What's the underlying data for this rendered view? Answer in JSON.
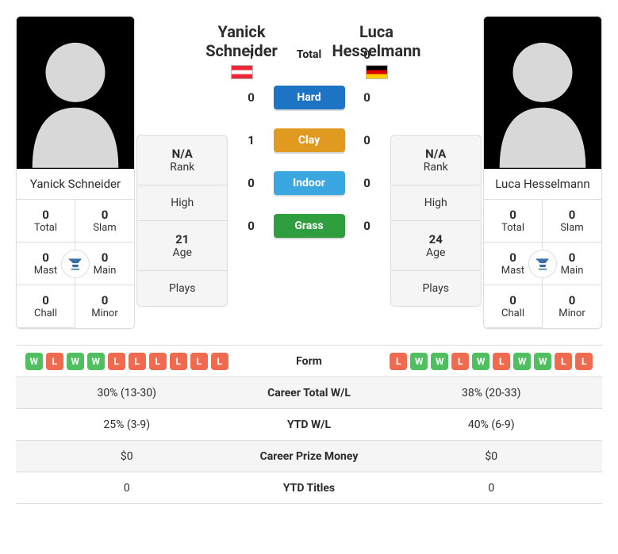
{
  "playerA": {
    "name": "Yanick Schneider",
    "flag": "flag-at",
    "rank": "N/A",
    "high": "",
    "age": "21",
    "plays": "",
    "titles": {
      "total": "0",
      "slam": "0",
      "mast": "0",
      "main": "0",
      "chall": "0",
      "minor": "0"
    },
    "form": [
      "W",
      "L",
      "W",
      "W",
      "L",
      "L",
      "L",
      "L",
      "L",
      "L"
    ]
  },
  "playerB": {
    "name": "Luca Hesselmann",
    "flag": "flag-de",
    "rank": "N/A",
    "high": "",
    "age": "24",
    "plays": "",
    "titles": {
      "total": "0",
      "slam": "0",
      "mast": "0",
      "main": "0",
      "chall": "0",
      "minor": "0"
    },
    "form": [
      "L",
      "W",
      "W",
      "L",
      "W",
      "L",
      "W",
      "W",
      "L",
      "L"
    ]
  },
  "h2h": {
    "total": {
      "label": "Total",
      "a": "1",
      "b": "0"
    },
    "hard": {
      "label": "Hard",
      "a": "0",
      "b": "0"
    },
    "clay": {
      "label": "Clay",
      "a": "1",
      "b": "0"
    },
    "indoor": {
      "label": "Indoor",
      "a": "0",
      "b": "0"
    },
    "grass": {
      "label": "Grass",
      "a": "0",
      "b": "0"
    }
  },
  "labels": {
    "rank": "Rank",
    "high": "High",
    "age": "Age",
    "plays": "Plays",
    "total": "Total",
    "slam": "Slam",
    "mast": "Mast",
    "main": "Main",
    "chall": "Chall",
    "minor": "Minor",
    "form": "Form",
    "careerWL": "Career Total W/L",
    "ytdWL": "YTD W/L",
    "prize": "Career Prize Money",
    "ytdTitles": "YTD Titles"
  },
  "compare": {
    "careerWL": {
      "a": "30% (13-30)",
      "b": "38% (20-33)"
    },
    "ytdWL": {
      "a": "25% (3-9)",
      "b": "40% (6-9)"
    },
    "prize": {
      "a": "$0",
      "b": "$0"
    },
    "ytdTitles": {
      "a": "0",
      "b": "0"
    }
  },
  "colors": {
    "hard": "#1d74c4",
    "clay": "#e09a1f",
    "indoor": "#3ba7e0",
    "grass": "#2e9e3f",
    "win": "#4fbf60",
    "loss": "#ef6a4f",
    "trophy": "#3a6ea5"
  }
}
